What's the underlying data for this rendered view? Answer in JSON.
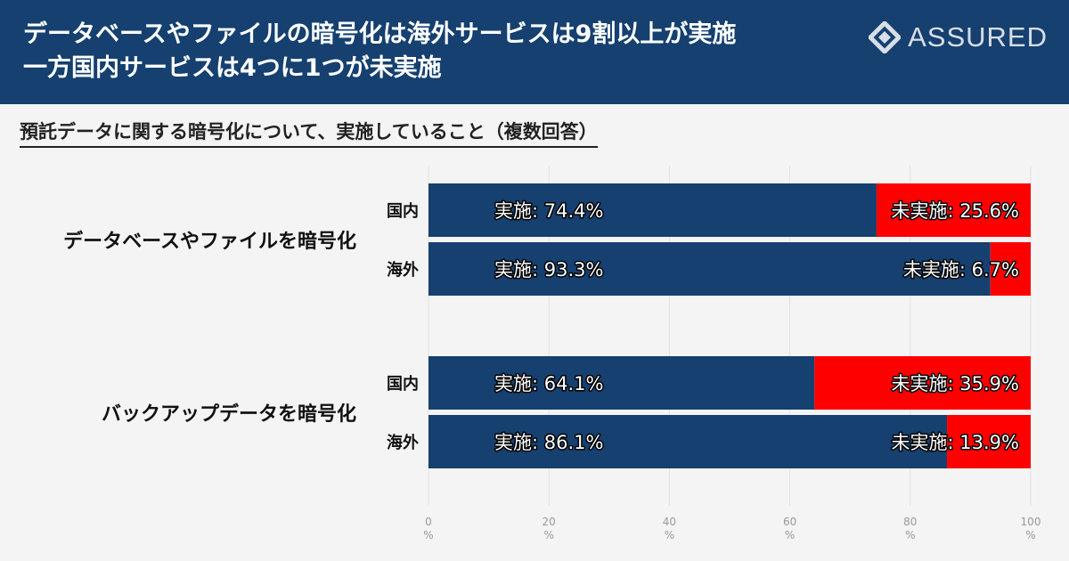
{
  "header": {
    "title_lines": [
      "データベースやファイルの暗号化は海外サービスは9割以上が実施",
      "一方国内サービスは4つに1つが未実施"
    ],
    "brand": "ASSURED"
  },
  "subtitle": "預託データに関する暗号化について、実施していること（複数回答）",
  "colors": {
    "header_bg": "#154070",
    "implemented": "#154070",
    "not_implemented": "#ff0000"
  },
  "chart_data": {
    "type": "bar",
    "orientation": "horizontal",
    "stacked": true,
    "title": "預託データに関する暗号化について、実施していること（複数回答）",
    "xlim": [
      0,
      100
    ],
    "x_ticks": [
      "0\n%",
      "20\n%",
      "40\n%",
      "60\n%",
      "80\n%",
      "100\n%"
    ],
    "grid": true,
    "groups": [
      {
        "label": "データベースやファイルを暗号化",
        "rows": [
          {
            "label": "国内",
            "implemented": 74.4,
            "not_implemented": 25.6,
            "implemented_label": "実施: 74.4%",
            "not_implemented_label": "未実施: 25.6%"
          },
          {
            "label": "海外",
            "implemented": 93.3,
            "not_implemented": 6.7,
            "implemented_label": "実施: 93.3%",
            "not_implemented_label": "未実施: 6.7%"
          }
        ]
      },
      {
        "label": "バックアップデータを暗号化",
        "rows": [
          {
            "label": "国内",
            "implemented": 64.1,
            "not_implemented": 35.9,
            "implemented_label": "実施: 64.1%",
            "not_implemented_label": "未実施: 35.9%"
          },
          {
            "label": "海外",
            "implemented": 86.1,
            "not_implemented": 13.9,
            "implemented_label": "実施: 86.1%",
            "not_implemented_label": "未実施: 13.9%"
          }
        ]
      }
    ]
  }
}
